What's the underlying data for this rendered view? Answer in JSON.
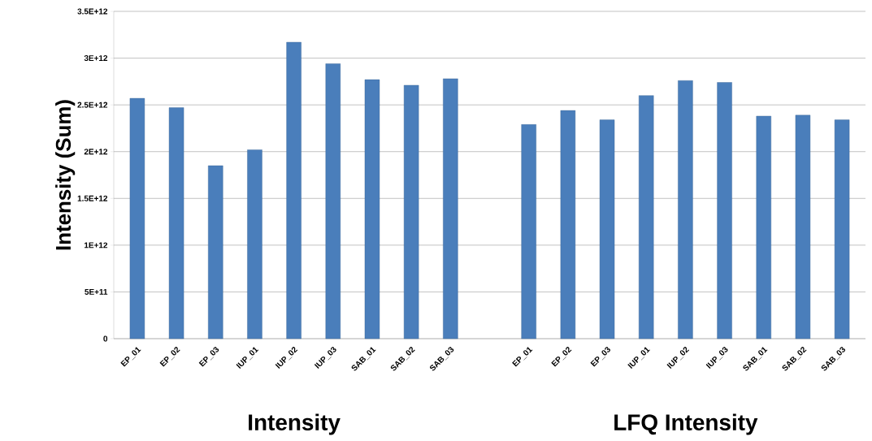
{
  "chart_data": {
    "type": "bar",
    "ylabel": "Intensity (Sum)",
    "categories": [
      "EP_01",
      "EP_02",
      "EP_03",
      "IUP_01",
      "IUP_02",
      "IUP_03",
      "SAB_01",
      "SAB_02",
      "SAB_03",
      null,
      "EP_01",
      "EP_02",
      "EP_03",
      "IUP_01",
      "IUP_02",
      "IUP_03",
      "SAB_01",
      "SAB_02",
      "SAB_03"
    ],
    "values": [
      2570000000000.0,
      2470000000000.0,
      1850000000000.0,
      2020000000000.0,
      3170000000000.0,
      2940000000000.0,
      2770000000000.0,
      2710000000000.0,
      2780000000000.0,
      null,
      2290000000000.0,
      2440000000000.0,
      2340000000000.0,
      2600000000000.0,
      2760000000000.0,
      2740000000000.0,
      2380000000000.0,
      2390000000000.0,
      2340000000000.0
    ],
    "color": "#4a7ebb",
    "ylim": [
      0,
      3500000000000.0
    ],
    "yticks": [
      0,
      {
        "value": 500000000000.0,
        "label": "5E+11"
      },
      {
        "value": 1000000000000.0,
        "label": "1E+12"
      },
      {
        "value": 1500000000000.0,
        "label": "1.5E+12"
      },
      {
        "value": 2000000000000.0,
        "label": "2E+12"
      },
      {
        "value": 2500000000000.0,
        "label": "2.5E+12"
      },
      {
        "value": 3000000000000.0,
        "label": "3E+12"
      },
      {
        "value": 3500000000000.0,
        "label": "3.5E+12"
      }
    ],
    "grid": "y",
    "annotations": [
      "Intensity",
      "LFQ Intensity"
    ]
  }
}
